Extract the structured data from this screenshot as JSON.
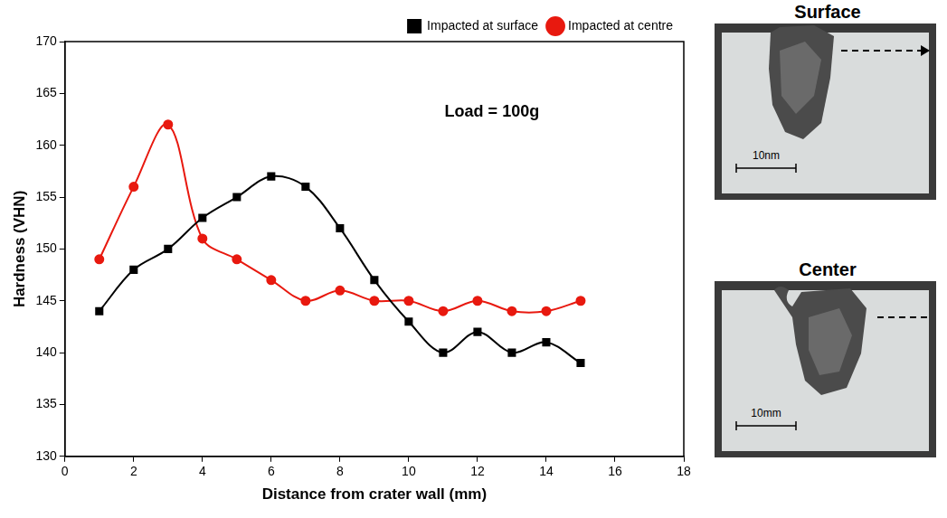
{
  "chart_data": {
    "type": "line",
    "x_label": "Distance from crater wall (mm)",
    "y_label": "Hardness (VHN)",
    "annotation": "Load = 100g",
    "x": [
      1,
      2,
      3,
      4,
      5,
      6,
      7,
      8,
      9,
      10,
      11,
      12,
      13,
      14,
      15
    ],
    "series": [
      {
        "name": "Impacted at surface",
        "color": "#000000",
        "marker": "square",
        "line_style": "solid",
        "values": [
          144,
          148,
          150,
          153,
          155,
          157,
          156,
          152,
          147,
          143,
          140,
          142,
          140,
          141,
          139
        ]
      },
      {
        "name": "Impacted at centre",
        "color": "#e8190f",
        "marker": "circle",
        "line_style": "solid",
        "values": [
          149,
          156,
          162,
          151,
          149,
          147,
          145,
          146,
          145,
          145,
          144,
          145,
          144,
          144,
          145
        ]
      }
    ],
    "xlim": [
      0,
      18
    ],
    "xticks": [
      0,
      2,
      4,
      6,
      8,
      10,
      12,
      14,
      16,
      18
    ],
    "ylim": [
      130,
      170
    ],
    "yticks": [
      130,
      135,
      140,
      145,
      150,
      155,
      160,
      165,
      170
    ],
    "grid": false,
    "legend": "top right"
  },
  "photos": [
    {
      "title": "Surface",
      "scale_bar": "10nm"
    },
    {
      "title": "Center",
      "scale_bar": "10mm"
    }
  ]
}
